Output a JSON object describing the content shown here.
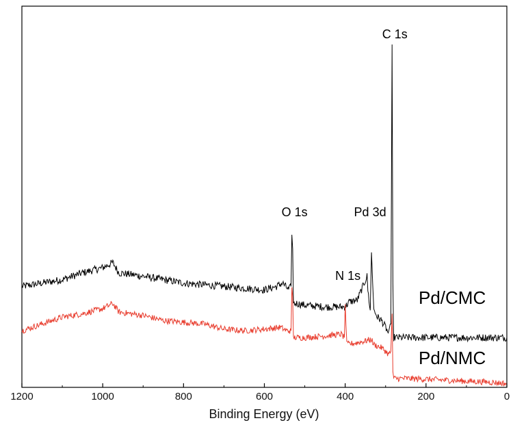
{
  "chart_data": {
    "type": "line",
    "title": "",
    "xlabel": "Binding Energy (eV)",
    "ylabel": "",
    "xlim": [
      1200,
      0
    ],
    "x_reversed": true,
    "ylim": [
      0,
      1
    ],
    "x_ticks": [
      1200,
      1000,
      800,
      600,
      400,
      200,
      0
    ],
    "grid": false,
    "legend": "none",
    "annotations": [
      {
        "text": "C 1s",
        "x": 284
      },
      {
        "text": "O 1s",
        "x": 532
      },
      {
        "text": "Pd 3d",
        "x": 335
      },
      {
        "text": "N 1s",
        "x": 400
      }
    ],
    "series": [
      {
        "name": "Pd/CMC",
        "color": "#000000",
        "points": [
          [
            1200,
            0.29
          ],
          [
            1150,
            0.3
          ],
          [
            1100,
            0.31
          ],
          [
            1050,
            0.33
          ],
          [
            1000,
            0.345
          ],
          [
            975,
            0.36
          ],
          [
            960,
            0.33
          ],
          [
            900,
            0.32
          ],
          [
            850,
            0.31
          ],
          [
            800,
            0.3
          ],
          [
            750,
            0.295
          ],
          [
            700,
            0.29
          ],
          [
            650,
            0.285
          ],
          [
            600,
            0.28
          ],
          [
            570,
            0.29
          ],
          [
            555,
            0.3
          ],
          [
            540,
            0.28
          ],
          [
            534,
            0.29
          ],
          [
            532,
            0.45
          ],
          [
            530,
            0.4
          ],
          [
            528,
            0.24
          ],
          [
            520,
            0.24
          ],
          [
            500,
            0.235
          ],
          [
            450,
            0.23
          ],
          [
            400,
            0.23
          ],
          [
            390,
            0.245
          ],
          [
            370,
            0.25
          ],
          [
            346,
            0.32
          ],
          [
            344,
            0.28
          ],
          [
            338,
            0.22
          ],
          [
            335,
            0.39
          ],
          [
            332,
            0.3
          ],
          [
            329,
            0.22
          ],
          [
            320,
            0.2
          ],
          [
            310,
            0.19
          ],
          [
            300,
            0.17
          ],
          [
            292,
            0.15
          ],
          [
            287,
            0.18
          ],
          [
            284,
            1.0
          ],
          [
            282,
            0.3
          ],
          [
            280,
            0.14
          ],
          [
            250,
            0.14
          ],
          [
            200,
            0.14
          ],
          [
            150,
            0.14
          ],
          [
            100,
            0.14
          ],
          [
            50,
            0.14
          ],
          [
            0,
            0.14
          ]
        ]
      },
      {
        "name": "Pd/NMC",
        "color": "#e83a2b",
        "points": [
          [
            1200,
            0.16
          ],
          [
            1150,
            0.18
          ],
          [
            1100,
            0.2
          ],
          [
            1050,
            0.21
          ],
          [
            1000,
            0.225
          ],
          [
            975,
            0.24
          ],
          [
            960,
            0.215
          ],
          [
            900,
            0.205
          ],
          [
            850,
            0.19
          ],
          [
            800,
            0.185
          ],
          [
            750,
            0.18
          ],
          [
            700,
            0.165
          ],
          [
            650,
            0.16
          ],
          [
            600,
            0.165
          ],
          [
            560,
            0.17
          ],
          [
            545,
            0.16
          ],
          [
            534,
            0.16
          ],
          [
            532,
            0.28
          ],
          [
            530,
            0.26
          ],
          [
            528,
            0.14
          ],
          [
            520,
            0.14
          ],
          [
            500,
            0.14
          ],
          [
            450,
            0.145
          ],
          [
            410,
            0.15
          ],
          [
            402,
            0.14
          ],
          [
            400,
            0.24
          ],
          [
            398,
            0.18
          ],
          [
            396,
            0.12
          ],
          [
            370,
            0.125
          ],
          [
            350,
            0.13
          ],
          [
            335,
            0.135
          ],
          [
            330,
            0.12
          ],
          [
            310,
            0.11
          ],
          [
            300,
            0.1
          ],
          [
            292,
            0.09
          ],
          [
            287,
            0.1
          ],
          [
            284,
            0.21
          ],
          [
            282,
            0.04
          ],
          [
            280,
            0.02
          ],
          [
            250,
            0.02
          ],
          [
            200,
            0.018
          ],
          [
            150,
            0.015
          ],
          [
            100,
            0.012
          ],
          [
            50,
            0.01
          ],
          [
            0,
            0.005
          ]
        ]
      }
    ]
  }
}
